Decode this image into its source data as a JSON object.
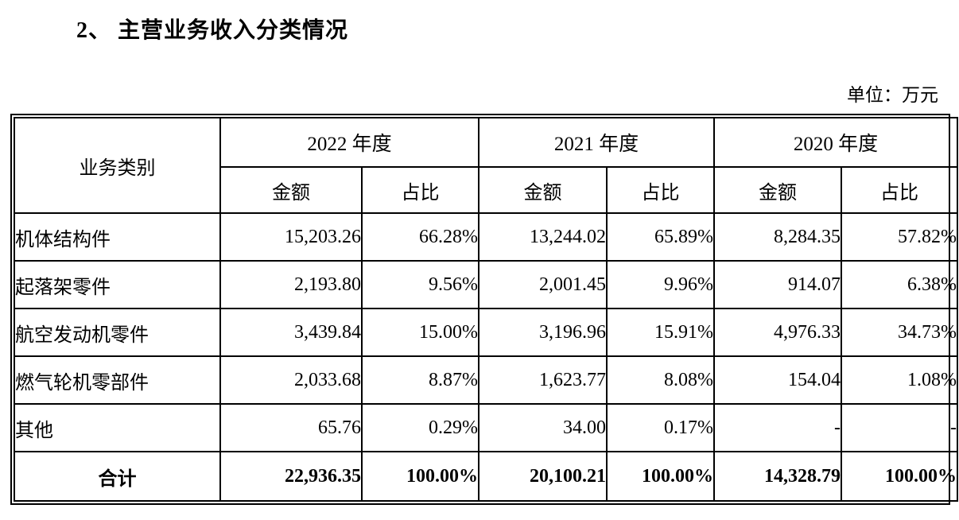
{
  "page": {
    "title": "2、 主营业务收入分类情况",
    "unit_label": "单位：万元"
  },
  "table": {
    "header": {
      "category": "业务类别",
      "year_groups": [
        "2022 年度",
        "2021 年度",
        "2020 年度"
      ],
      "sub_columns": [
        "金额",
        "占比"
      ]
    },
    "rows": [
      {
        "category": "机体结构件",
        "bold": false,
        "values": [
          "15,203.26",
          "66.28%",
          "13,244.02",
          "65.89%",
          "8,284.35",
          "57.82%"
        ]
      },
      {
        "category": "起落架零件",
        "bold": false,
        "values": [
          "2,193.80",
          "9.56%",
          "2,001.45",
          "9.96%",
          "914.07",
          "6.38%"
        ]
      },
      {
        "category": "航空发动机零件",
        "bold": false,
        "values": [
          "3,439.84",
          "15.00%",
          "3,196.96",
          "15.91%",
          "4,976.33",
          "34.73%"
        ]
      },
      {
        "category": "燃气轮机零部件",
        "bold": false,
        "values": [
          "2,033.68",
          "8.87%",
          "1,623.77",
          "8.08%",
          "154.04",
          "1.08%"
        ]
      },
      {
        "category": "其他",
        "bold": false,
        "values": [
          "65.76",
          "0.29%",
          "34.00",
          "0.17%",
          "-",
          "-"
        ]
      },
      {
        "category": "合计",
        "bold": true,
        "values": [
          "22,936.35",
          "100.00%",
          "20,100.21",
          "100.00%",
          "14,328.79",
          "100.00%"
        ]
      }
    ],
    "colors": {
      "border": "#000000",
      "text": "#000000",
      "background": "#ffffff"
    }
  }
}
